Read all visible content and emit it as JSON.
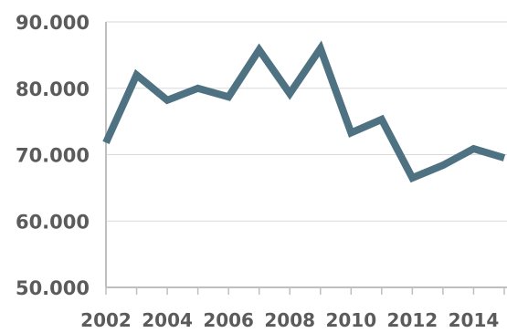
{
  "chart_data": {
    "type": "line",
    "x": [
      2002,
      2003,
      2004,
      2005,
      2006,
      2007,
      2008,
      2009,
      2010,
      2011,
      2012,
      2013,
      2014,
      2015
    ],
    "xtick_labels": [
      "2002",
      "2004",
      "2006",
      "2008",
      "2010",
      "2012",
      "2014"
    ],
    "series": [
      {
        "values": [
          71800,
          82000,
          78200,
          80000,
          78700,
          85800,
          79200,
          86000,
          73300,
          75300,
          66500,
          68400,
          70900,
          69500
        ],
        "color": "#4e7282"
      }
    ],
    "yticks": [
      50000,
      60000,
      70000,
      80000,
      90000
    ],
    "ytick_labels": [
      "50.000",
      "60.000",
      "70.000",
      "80.000",
      "90.000"
    ],
    "ylim": [
      50000,
      90000
    ],
    "xlim": [
      2002,
      2015
    ],
    "title": "",
    "xlabel": "",
    "ylabel": "",
    "grid": true,
    "legend": "none"
  }
}
